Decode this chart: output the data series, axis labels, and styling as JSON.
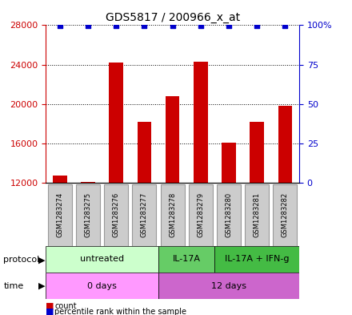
{
  "title": "GDS5817 / 200966_x_at",
  "samples": [
    "GSM1283274",
    "GSM1283275",
    "GSM1283276",
    "GSM1283277",
    "GSM1283278",
    "GSM1283279",
    "GSM1283280",
    "GSM1283281",
    "GSM1283282"
  ],
  "counts": [
    12700,
    12100,
    24200,
    18200,
    20800,
    24300,
    16100,
    18200,
    19800
  ],
  "ylim_left": [
    12000,
    28000
  ],
  "ylim_right": [
    0,
    100
  ],
  "yticks_left": [
    12000,
    16000,
    20000,
    24000,
    28000
  ],
  "yticks_right": [
    0,
    25,
    50,
    75,
    100
  ],
  "ytick_right_labels": [
    "0",
    "25",
    "50",
    "75",
    "100%"
  ],
  "bar_color": "#cc0000",
  "dot_color": "#0000cc",
  "protocol_groups": [
    {
      "label": "untreated",
      "start": 0,
      "end": 4,
      "color": "#ccffcc"
    },
    {
      "label": "IL-17A",
      "start": 4,
      "end": 6,
      "color": "#66cc66"
    },
    {
      "label": "IL-17A + IFN-g",
      "start": 6,
      "end": 9,
      "color": "#44bb44"
    }
  ],
  "time_groups": [
    {
      "label": "0 days",
      "start": 0,
      "end": 4,
      "color": "#ff99ff"
    },
    {
      "label": "12 days",
      "start": 4,
      "end": 9,
      "color": "#cc66cc"
    }
  ],
  "legend_count_color": "#cc0000",
  "legend_pct_color": "#0000cc",
  "sample_box_color": "#cccccc",
  "sample_box_edge": "#999999"
}
